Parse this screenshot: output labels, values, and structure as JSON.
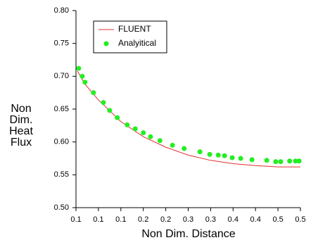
{
  "chart_data": {
    "type": "line-scatter",
    "xlabel": "Non Dim. Distance",
    "ylabel": [
      "Non",
      "Dim.",
      "Heat",
      "Flux"
    ],
    "xlim": [
      0.05,
      0.55
    ],
    "xticks": [
      {
        "value": 0.05,
        "label": "0.1"
      },
      {
        "value": 0.1,
        "label": "0.1"
      },
      {
        "value": 0.15,
        "label": "0.1"
      },
      {
        "value": 0.2,
        "label": "0.2"
      },
      {
        "value": 0.25,
        "label": "0.2"
      },
      {
        "value": 0.3,
        "label": "0.3"
      },
      {
        "value": 0.35,
        "label": "0.3"
      },
      {
        "value": 0.4,
        "label": "0.4"
      },
      {
        "value": 0.45,
        "label": "0.4"
      },
      {
        "value": 0.5,
        "label": "0.5"
      },
      {
        "value": 0.55,
        "label": "0.5"
      }
    ],
    "ylim": [
      0.5,
      0.8
    ],
    "yticks": [
      {
        "value": 0.5,
        "label": "0.50"
      },
      {
        "value": 0.55,
        "label": "0.55"
      },
      {
        "value": 0.6,
        "label": "0.60"
      },
      {
        "value": 0.65,
        "label": "0.65"
      },
      {
        "value": 0.7,
        "label": "0.70"
      },
      {
        "value": 0.75,
        "label": "0.75"
      },
      {
        "value": 0.8,
        "label": "0.80"
      }
    ],
    "series": [
      {
        "name": "FLUENT",
        "kind": "line",
        "color": "#e03030",
        "x": [
          0.053,
          0.07,
          0.1,
          0.15,
          0.2,
          0.25,
          0.3,
          0.35,
          0.4,
          0.45,
          0.5,
          0.55
        ],
        "values": [
          0.708,
          0.688,
          0.664,
          0.631,
          0.608,
          0.592,
          0.58,
          0.572,
          0.567,
          0.564,
          0.562,
          0.562
        ]
      },
      {
        "name": "Analyitical",
        "kind": "scatter",
        "color": "#22ee22",
        "x": [
          0.056,
          0.064,
          0.07,
          0.089,
          0.111,
          0.125,
          0.142,
          0.164,
          0.182,
          0.2,
          0.216,
          0.237,
          0.265,
          0.291,
          0.326,
          0.348,
          0.367,
          0.381,
          0.398,
          0.417,
          0.442,
          0.475,
          0.495,
          0.506,
          0.526,
          0.539,
          0.547
        ],
        "values": [
          0.712,
          0.7,
          0.691,
          0.675,
          0.66,
          0.648,
          0.637,
          0.626,
          0.62,
          0.614,
          0.608,
          0.602,
          0.595,
          0.59,
          0.585,
          0.581,
          0.58,
          0.579,
          0.576,
          0.575,
          0.573,
          0.572,
          0.57,
          0.57,
          0.571,
          0.571,
          0.571
        ]
      }
    ]
  }
}
